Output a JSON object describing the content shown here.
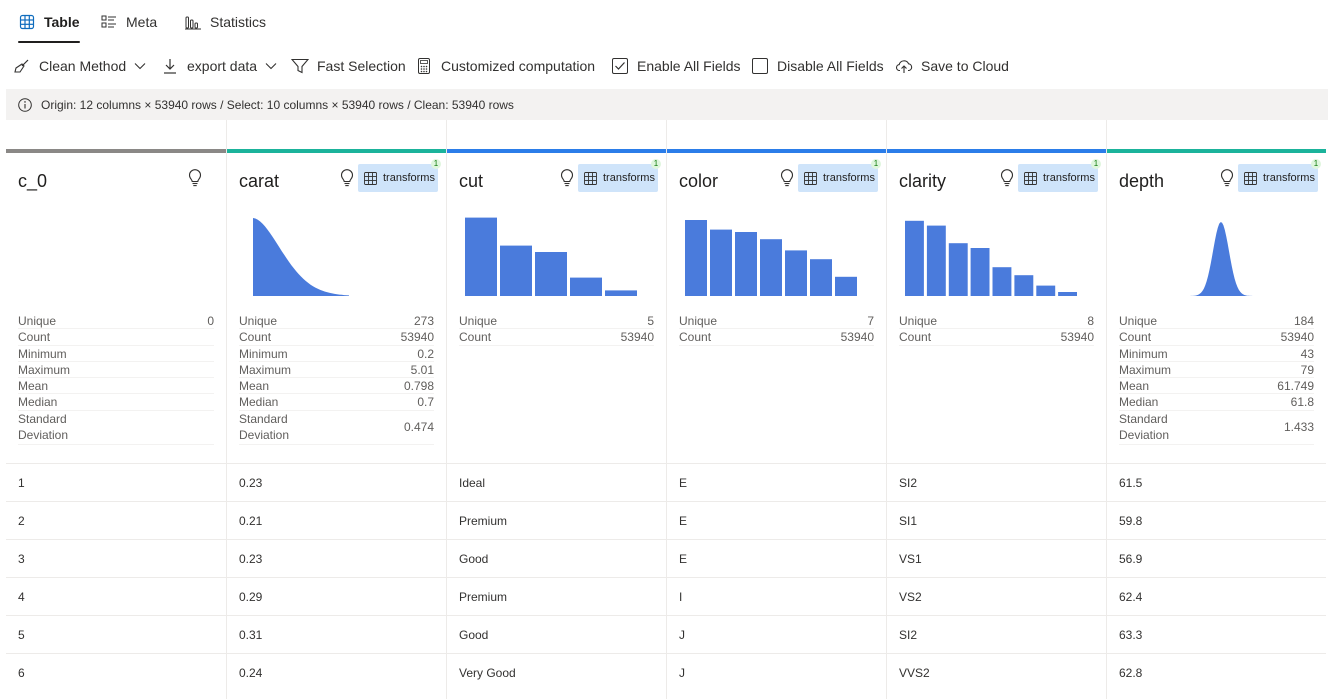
{
  "tabs": [
    {
      "label": "Table",
      "icon": "table-icon",
      "active": true
    },
    {
      "label": "Meta",
      "icon": "meta-list-icon",
      "active": false
    },
    {
      "label": "Statistics",
      "icon": "statistics-icon",
      "active": false
    }
  ],
  "toolbar": {
    "clean_method": "Clean Method",
    "export_data": "export data",
    "fast_selection": "Fast Selection",
    "customized_computation": "Customized computation",
    "enable_all_fields": "Enable All Fields",
    "disable_all_fields": "Disable All Fields",
    "save_to_cloud": "Save to Cloud"
  },
  "info": {
    "text": "Origin: 12 columns × 53940 rows / Select: 10 columns × 53940 rows / Clean: 53940 rows"
  },
  "colors": {
    "accent_blue": "#4a7bdc",
    "strip_gray": "#8a8886",
    "strip_teal": "#1bb39b",
    "strip_blue": "#2b7de9",
    "transforms_bg": "#cfe4fa"
  },
  "columns": [
    {
      "name": "c_0",
      "strip": "gray",
      "has_transforms": false,
      "chart": {
        "type": "none"
      },
      "stats": [
        {
          "label": "Unique",
          "value": "0"
        },
        {
          "label": "Count",
          "value": ""
        },
        {
          "label": "Minimum",
          "value": ""
        },
        {
          "label": "Maximum",
          "value": ""
        },
        {
          "label": "Mean",
          "value": ""
        },
        {
          "label": "Median",
          "value": ""
        },
        {
          "label": "Standard\nDeviation",
          "value": ""
        }
      ],
      "values": [
        "1",
        "2",
        "3",
        "4",
        "5",
        "6"
      ]
    },
    {
      "name": "carat",
      "strip": "teal",
      "has_transforms": true,
      "transforms_label": "transforms",
      "badge": "1",
      "chart": {
        "type": "density",
        "shape": "right-skewed",
        "peak": "left"
      },
      "stats": [
        {
          "label": "Unique",
          "value": "273"
        },
        {
          "label": "Count",
          "value": "53940"
        },
        {
          "label": "Minimum",
          "value": "0.2"
        },
        {
          "label": "Maximum",
          "value": "5.01"
        },
        {
          "label": "Mean",
          "value": "0.798"
        },
        {
          "label": "Median",
          "value": "0.7"
        },
        {
          "label": "Standard\nDeviation",
          "value": "0.474"
        }
      ],
      "values": [
        "0.23",
        "0.21",
        "0.23",
        "0.29",
        "0.31",
        "0.24"
      ]
    },
    {
      "name": "cut",
      "strip": "blue",
      "has_transforms": true,
      "transforms_label": "transforms",
      "badge": "1",
      "chart": {
        "type": "bar",
        "values": [
          0.98,
          0.63,
          0.55,
          0.23,
          0.07
        ]
      },
      "stats": [
        {
          "label": "Unique",
          "value": "5"
        },
        {
          "label": "Count",
          "value": "53940"
        }
      ],
      "values": [
        "Ideal",
        "Premium",
        "Good",
        "Premium",
        "Good",
        "Very Good"
      ]
    },
    {
      "name": "color",
      "strip": "blue",
      "has_transforms": true,
      "transforms_label": "transforms",
      "badge": "1",
      "chart": {
        "type": "bar",
        "values": [
          0.95,
          0.83,
          0.8,
          0.71,
          0.57,
          0.46,
          0.24
        ]
      },
      "stats": [
        {
          "label": "Unique",
          "value": "7"
        },
        {
          "label": "Count",
          "value": "53940"
        }
      ],
      "values": [
        "E",
        "E",
        "E",
        "I",
        "J",
        "J"
      ]
    },
    {
      "name": "clarity",
      "strip": "blue",
      "has_transforms": true,
      "transforms_label": "transforms",
      "badge": "1",
      "chart": {
        "type": "bar",
        "values": [
          0.94,
          0.88,
          0.66,
          0.6,
          0.36,
          0.26,
          0.13,
          0.05
        ]
      },
      "stats": [
        {
          "label": "Unique",
          "value": "8"
        },
        {
          "label": "Count",
          "value": "53940"
        }
      ],
      "values": [
        "SI2",
        "SI1",
        "VS1",
        "VS2",
        "SI2",
        "VVS2"
      ]
    },
    {
      "name": "depth",
      "strip": "teal",
      "has_transforms": true,
      "transforms_label": "transforms",
      "badge": "1",
      "chart": {
        "type": "density",
        "shape": "normal",
        "peak": "center"
      },
      "stats": [
        {
          "label": "Unique",
          "value": "184"
        },
        {
          "label": "Count",
          "value": "53940"
        },
        {
          "label": "Minimum",
          "value": "43"
        },
        {
          "label": "Maximum",
          "value": "79"
        },
        {
          "label": "Mean",
          "value": "61.749"
        },
        {
          "label": "Median",
          "value": "61.8"
        },
        {
          "label": "Standard\nDeviation",
          "value": "1.433"
        }
      ],
      "values": [
        "61.5",
        "59.8",
        "56.9",
        "62.4",
        "63.3",
        "62.8"
      ]
    }
  ]
}
